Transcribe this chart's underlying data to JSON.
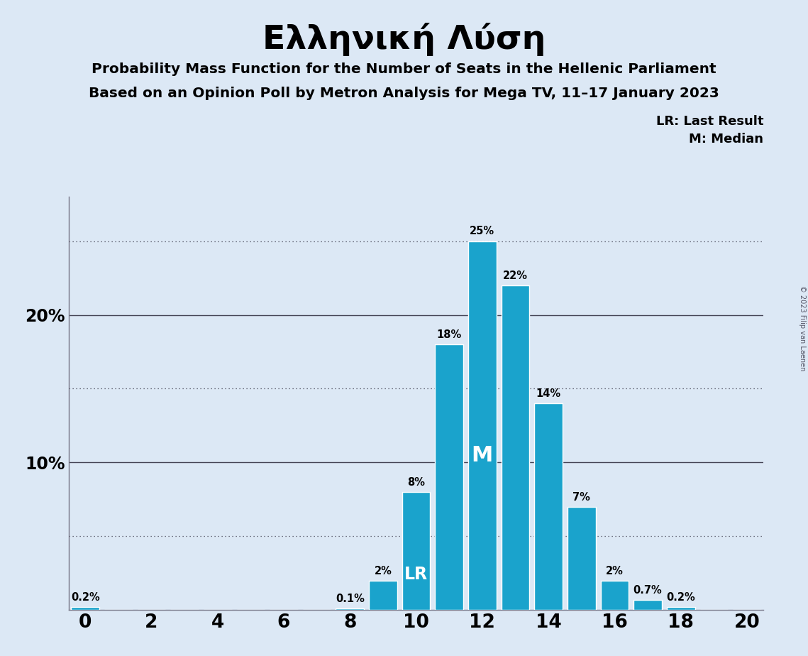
{
  "title": "Ελληνική Λύση",
  "subtitle1": "Probability Mass Function for the Number of Seats in the Hellenic Parliament",
  "subtitle2": "Based on an Opinion Poll by Metron Analysis for Mega TV, 11–17 January 2023",
  "copyright": "© 2023 Filip van Laenen",
  "categories": [
    0,
    1,
    2,
    3,
    4,
    5,
    6,
    7,
    8,
    9,
    10,
    11,
    12,
    13,
    14,
    15,
    16,
    17,
    18,
    19,
    20
  ],
  "values": [
    0.2,
    0,
    0,
    0,
    0,
    0,
    0,
    0,
    0.1,
    2,
    8,
    18,
    25,
    22,
    14,
    7,
    2,
    0.7,
    0.2,
    0,
    0
  ],
  "bar_color": "#1aa3cc",
  "background_color": "#dce8f5",
  "last_result_seat": 10,
  "median_seat": 12,
  "lr_label": "LR",
  "m_label": "M",
  "legend_lr": "LR: Last Result",
  "legend_m": "M: Median",
  "ylim": [
    0,
    28
  ],
  "solid_lines": [
    10,
    20
  ],
  "dotted_lines": [
    5,
    15,
    25
  ],
  "xlim": [
    -0.5,
    20.5
  ],
  "bar_width": 0.85,
  "label_fontsize": 10.5,
  "ytick_labels": [
    [
      10,
      "10%"
    ],
    [
      20,
      "20%"
    ]
  ],
  "xtick_positions": [
    0,
    2,
    4,
    6,
    8,
    10,
    12,
    14,
    16,
    18,
    20
  ]
}
